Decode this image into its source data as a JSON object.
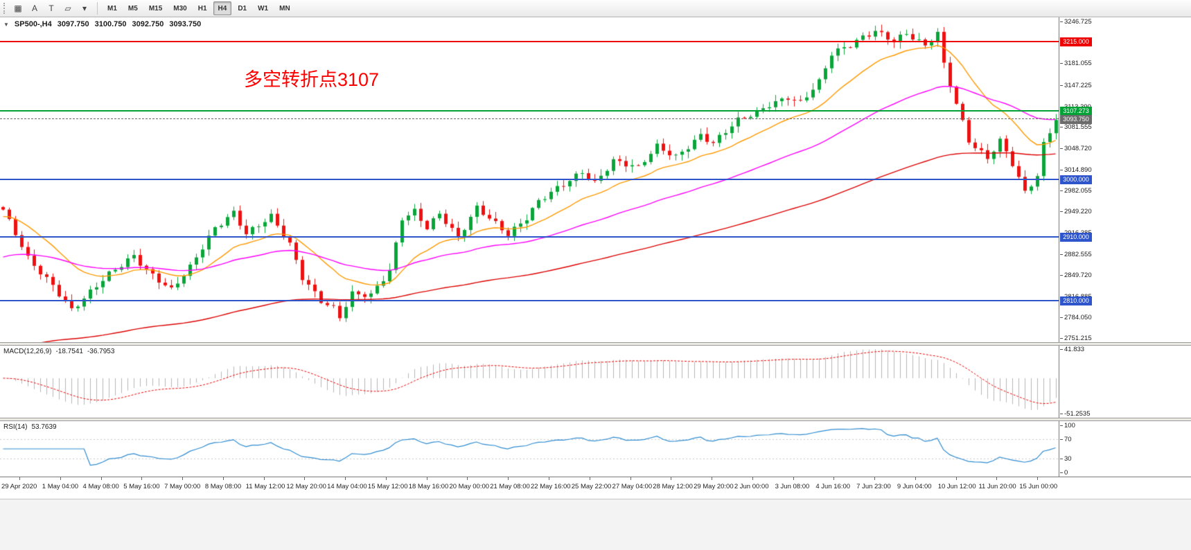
{
  "toolbar": {
    "draw_tools": [
      {
        "name": "crosshair-icon",
        "glyph": "▦"
      },
      {
        "name": "text-label-tool",
        "glyph": "A"
      },
      {
        "name": "text-tool",
        "glyph": "T"
      },
      {
        "name": "shapes-tool-icon",
        "glyph": "▱"
      },
      {
        "name": "shapes-dropdown-icon",
        "glyph": "▾"
      }
    ],
    "timeframes": [
      {
        "label": "M1",
        "active": false
      },
      {
        "label": "M5",
        "active": false
      },
      {
        "label": "M15",
        "active": false
      },
      {
        "label": "M30",
        "active": false
      },
      {
        "label": "H1",
        "active": false
      },
      {
        "label": "H4",
        "active": true
      },
      {
        "label": "D1",
        "active": false
      },
      {
        "label": "W1",
        "active": false
      },
      {
        "label": "MN",
        "active": false
      }
    ]
  },
  "chart": {
    "symbol_line": {
      "expander": "▼",
      "symbol": "SP500-,H4",
      "open": "3097.750",
      "high": "3100.750",
      "low": "3092.750",
      "close": "3093.750"
    },
    "annotation": {
      "text": "多空转折点3107",
      "color": "#fe0000"
    },
    "candle_colors": {
      "up": "#0aa53a",
      "down": "#ee1111"
    },
    "price_axis": {
      "top": 3253.0,
      "bottom": 2745.0,
      "labels": [
        "3246.725",
        "3181.055",
        "3147.225",
        "3113.390",
        "3081.555",
        "3048.720",
        "3014.890",
        "2982.055",
        "2949.220",
        "2916.385",
        "2882.555",
        "2849.720",
        "2816.885",
        "2784.050",
        "2751.215"
      ]
    },
    "levels": [
      {
        "price": 3215.0,
        "label": "3215.000",
        "color": "#ee0000",
        "type": "resistance"
      },
      {
        "price": 3107.273,
        "label": "3107.273",
        "color": "#00a135",
        "type": "pivot"
      },
      {
        "price": 3093.75,
        "label": "3093.750",
        "color": "#6b6b6b",
        "type": "current"
      },
      {
        "price": 3000.0,
        "label": "3000.000",
        "color": "#2e55cc",
        "type": "support"
      },
      {
        "price": 2910.0,
        "label": "2910.000",
        "color": "#2e55cc",
        "type": "support"
      },
      {
        "price": 2810.0,
        "label": "2810.000",
        "color": "#2e55cc",
        "type": "support"
      }
    ]
  },
  "chart_data": {
    "type": "candlestick",
    "bars": 170,
    "close_waypoints": [
      [
        0,
        2950
      ],
      [
        4,
        2876
      ],
      [
        8,
        2836
      ],
      [
        11,
        2796
      ],
      [
        13,
        2812
      ],
      [
        17,
        2850
      ],
      [
        21,
        2882
      ],
      [
        23,
        2860
      ],
      [
        27,
        2826
      ],
      [
        30,
        2860
      ],
      [
        34,
        2924
      ],
      [
        37,
        2950
      ],
      [
        39,
        2916
      ],
      [
        43,
        2940
      ],
      [
        46,
        2896
      ],
      [
        48,
        2846
      ],
      [
        51,
        2812
      ],
      [
        53,
        2800
      ],
      [
        54,
        2786
      ],
      [
        56,
        2820
      ],
      [
        59,
        2816
      ],
      [
        62,
        2856
      ],
      [
        64,
        2940
      ],
      [
        66,
        2952
      ],
      [
        68,
        2926
      ],
      [
        70,
        2946
      ],
      [
        73,
        2906
      ],
      [
        76,
        2954
      ],
      [
        78,
        2940
      ],
      [
        81,
        2916
      ],
      [
        84,
        2940
      ],
      [
        86,
        2964
      ],
      [
        90,
        2990
      ],
      [
        93,
        3012
      ],
      [
        95,
        2996
      ],
      [
        98,
        3030
      ],
      [
        102,
        3016
      ],
      [
        105,
        3050
      ],
      [
        108,
        3036
      ],
      [
        112,
        3070
      ],
      [
        114,
        3056
      ],
      [
        118,
        3090
      ],
      [
        121,
        3104
      ],
      [
        123,
        3118
      ],
      [
        126,
        3130
      ],
      [
        128,
        3120
      ],
      [
        131,
        3150
      ],
      [
        133,
        3194
      ],
      [
        136,
        3210
      ],
      [
        138,
        3224
      ],
      [
        140,
        3234
      ],
      [
        143,
        3216
      ],
      [
        145,
        3226
      ],
      [
        148,
        3206
      ],
      [
        150,
        3228
      ],
      [
        151,
        3180
      ],
      [
        153,
        3120
      ],
      [
        155,
        3062
      ],
      [
        158,
        3032
      ],
      [
        160,
        3058
      ],
      [
        162,
        3022
      ],
      [
        164,
        2978
      ],
      [
        166,
        3006
      ],
      [
        167,
        3056
      ],
      [
        169,
        3097
      ]
    ],
    "ma": [
      {
        "name": "fast-ma",
        "period": 16,
        "seed": 2940,
        "color": "#ff9900"
      },
      {
        "name": "medium-ma",
        "period": 48,
        "seed": 2875,
        "color": "#ff00ff"
      },
      {
        "name": "slow-ma",
        "period": 120,
        "seed": 2725,
        "color": "#dd0000"
      }
    ]
  },
  "macd": {
    "title": "MACD(12,26,9)",
    "value_main": "-18.7541",
    "value_signal": "-36.7953",
    "fast": 12,
    "slow": 26,
    "signal": 9,
    "histogram_color": "#b6b6b6",
    "signal_color": "#ee0000",
    "scale": {
      "max": 47,
      "min": -57
    },
    "scale_labels": [
      {
        "text": "41.833",
        "value": 41.833
      },
      {
        "text": "-51.2535",
        "value": -51.2535
      }
    ]
  },
  "rsi": {
    "title": "RSI(14)",
    "value": "53.7639",
    "period": 14,
    "line_color": "#2e8bd0",
    "level_color": "#c8c8c8",
    "level_lines": [
      70,
      30
    ],
    "scale": {
      "max": 108,
      "min": -8
    },
    "scale_labels": [
      {
        "text": "100",
        "value": 100
      },
      {
        "text": "70",
        "value": 70
      },
      {
        "text": "30",
        "value": 30
      },
      {
        "text": "0",
        "value": 0
      }
    ]
  },
  "time_axis": {
    "labels": [
      "29 Apr 2020",
      "1 May 04:00",
      "4 May 08:00",
      "5 May 16:00",
      "7 May 00:00",
      "8 May 08:00",
      "11 May 12:00",
      "12 May 20:00",
      "14 May 04:00",
      "15 May 12:00",
      "18 May 16:00",
      "20 May 00:00",
      "21 May 08:00",
      "22 May 16:00",
      "25 May 22:00",
      "27 May 04:00",
      "28 May 12:00",
      "29 May 20:00",
      "2 Jun 00:00",
      "3 Jun 08:00",
      "4 Jun 16:00",
      "7 Jun 23:00",
      "9 Jun 04:00",
      "10 Jun 12:00",
      "11 Jun 20:00",
      "15 Jun 00:00"
    ]
  }
}
